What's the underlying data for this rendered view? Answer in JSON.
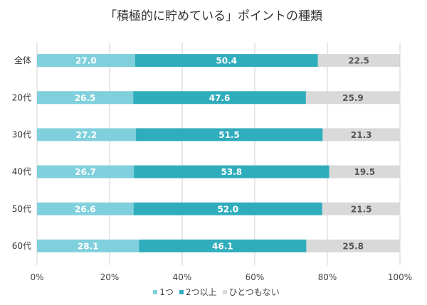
{
  "chart_data": {
    "type": "bar",
    "orientation": "horizontal",
    "stacked": true,
    "title": "「積極的に貯めている」ポイントの種類",
    "categories": [
      "全体",
      "20代",
      "30代",
      "40代",
      "50代",
      "60代"
    ],
    "series": [
      {
        "name": "1つ",
        "color": "#7fd0dc",
        "label_color": "#ffffff",
        "values": [
          27.0,
          26.5,
          27.2,
          26.7,
          26.6,
          28.1
        ]
      },
      {
        "name": "2つ以上",
        "color": "#30adbc",
        "label_color": "#ffffff",
        "values": [
          50.4,
          47.6,
          51.5,
          53.8,
          52.0,
          46.1
        ]
      },
      {
        "name": "ひとつもない",
        "color": "#d9d9d9",
        "label_color": "#555555",
        "values": [
          22.5,
          25.9,
          21.3,
          19.5,
          21.5,
          25.8
        ]
      }
    ],
    "xlim": [
      0,
      100
    ],
    "xticks": [
      "0%",
      "20%",
      "40%",
      "60%",
      "80%",
      "100%"
    ],
    "grid": true,
    "legend": "bottom"
  }
}
